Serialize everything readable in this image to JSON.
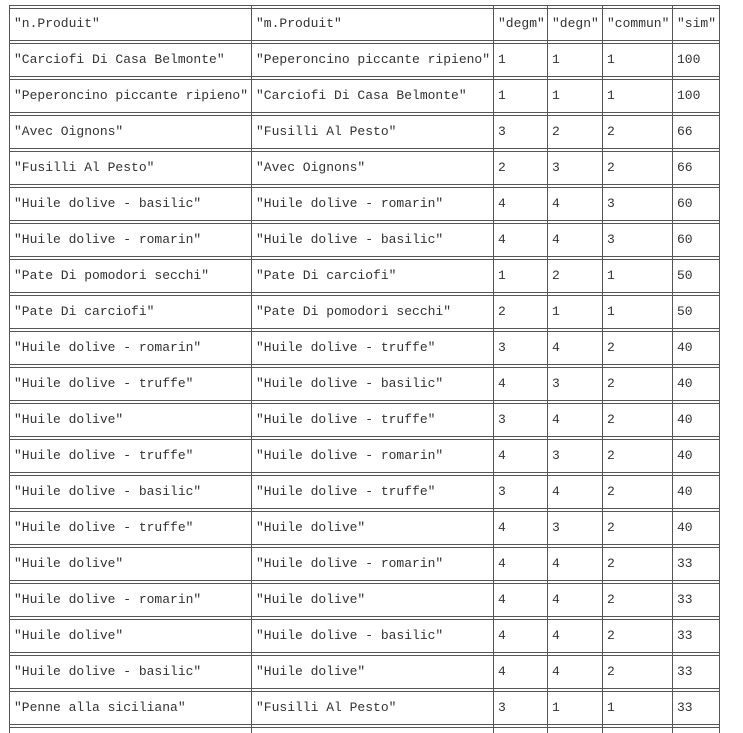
{
  "table": {
    "headers": [
      "\"n.Produit\"",
      "\"m.Produit\"",
      "\"degm\"",
      "\"degn\"",
      "\"commun\"",
      "\"sim\""
    ],
    "rows": [
      [
        "\"Carciofi Di Casa Belmonte\"",
        "\"Peperoncino piccante ripieno\"",
        "1",
        "1",
        "1",
        "100"
      ],
      [
        "\"Peperoncino piccante ripieno\"",
        "\"Carciofi Di Casa Belmonte\"",
        "1",
        "1",
        "1",
        "100"
      ],
      [
        "\"Avec Oignons\"",
        "\"Fusilli Al Pesto\"",
        "3",
        "2",
        "2",
        "66"
      ],
      [
        "\"Fusilli Al Pesto\"",
        "\"Avec Oignons\"",
        "2",
        "3",
        "2",
        "66"
      ],
      [
        "\"Huile dolive - basilic\"",
        "\"Huile dolive - romarin\"",
        "4",
        "4",
        "3",
        "60"
      ],
      [
        "\"Huile dolive - romarin\"",
        "\"Huile dolive - basilic\"",
        "4",
        "4",
        "3",
        "60"
      ],
      [
        "\"Pate Di pomodori secchi\"",
        "\"Pate Di carciofi\"",
        "1",
        "2",
        "1",
        "50"
      ],
      [
        "\"Pate Di carciofi\"",
        "\"Pate Di pomodori secchi\"",
        "2",
        "1",
        "1",
        "50"
      ],
      [
        "\"Huile dolive - romarin\"",
        "\"Huile dolive - truffe\"",
        "3",
        "4",
        "2",
        "40"
      ],
      [
        "\"Huile dolive - truffe\"",
        "\"Huile dolive - basilic\"",
        "4",
        "3",
        "2",
        "40"
      ],
      [
        "\"Huile dolive\"",
        "\"Huile dolive - truffe\"",
        "3",
        "4",
        "2",
        "40"
      ],
      [
        "\"Huile dolive - truffe\"",
        "\"Huile dolive - romarin\"",
        "4",
        "3",
        "2",
        "40"
      ],
      [
        "\"Huile dolive - basilic\"",
        "\"Huile dolive - truffe\"",
        "3",
        "4",
        "2",
        "40"
      ],
      [
        "\"Huile dolive - truffe\"",
        "\"Huile dolive\"",
        "4",
        "3",
        "2",
        "40"
      ],
      [
        "\"Huile dolive\"",
        "\"Huile dolive - romarin\"",
        "4",
        "4",
        "2",
        "33"
      ],
      [
        "\"Huile dolive - romarin\"",
        "\"Huile dolive\"",
        "4",
        "4",
        "2",
        "33"
      ],
      [
        "\"Huile dolive\"",
        "\"Huile dolive - basilic\"",
        "4",
        "4",
        "2",
        "33"
      ],
      [
        "\"Huile dolive - basilic\"",
        "\"Huile dolive\"",
        "4",
        "4",
        "2",
        "33"
      ],
      [
        "\"Penne alla siciliana\"",
        "\"Fusilli Al Pesto\"",
        "3",
        "1",
        "1",
        "33"
      ]
    ]
  }
}
